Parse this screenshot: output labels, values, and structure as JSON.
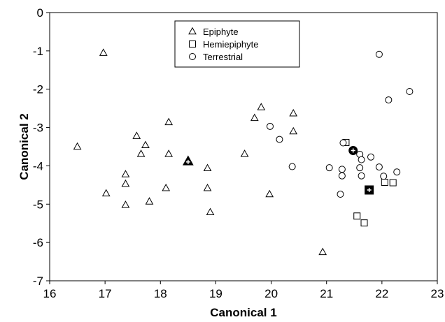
{
  "chart_data": {
    "type": "scatter",
    "xlabel": "Canonical 1",
    "ylabel": "Canonical 2",
    "xlim": [
      16,
      23
    ],
    "ylim": [
      -7,
      0
    ],
    "xticks": [
      "16",
      "17",
      "18",
      "19",
      "20",
      "21",
      "22",
      "23"
    ],
    "yticks": [
      "0",
      "-1",
      "-2",
      "-3",
      "-4",
      "-5",
      "-6",
      "-7"
    ],
    "legend_position": "top-center",
    "series": [
      {
        "name": "Epiphyte",
        "marker": "triangle",
        "points": [
          [
            16.5,
            -3.5
          ],
          [
            16.97,
            -1.05
          ],
          [
            17.02,
            -4.72
          ],
          [
            17.37,
            -4.22
          ],
          [
            17.37,
            -4.47
          ],
          [
            17.37,
            -5.02
          ],
          [
            17.57,
            -3.22
          ],
          [
            17.65,
            -3.69
          ],
          [
            17.73,
            -3.46
          ],
          [
            17.8,
            -4.93
          ],
          [
            18.1,
            -4.58
          ],
          [
            18.15,
            -2.86
          ],
          [
            18.15,
            -3.69
          ],
          [
            18.85,
            -4.06
          ],
          [
            18.85,
            -4.58
          ],
          [
            18.9,
            -5.21
          ],
          [
            19.52,
            -3.69
          ],
          [
            19.7,
            -2.75
          ],
          [
            19.82,
            -2.47
          ],
          [
            19.97,
            -4.74
          ],
          [
            20.4,
            -2.63
          ],
          [
            20.4,
            -3.1
          ],
          [
            20.93,
            -6.25
          ]
        ],
        "centroid": [
          18.5,
          -3.88
        ]
      },
      {
        "name": "Hemiepiphyte",
        "marker": "square",
        "points": [
          [
            21.35,
            -3.39
          ],
          [
            21.55,
            -5.31
          ],
          [
            21.68,
            -5.49
          ],
          [
            22.05,
            -4.43
          ],
          [
            22.2,
            -4.44
          ]
        ],
        "centroid": [
          21.77,
          -4.63
        ]
      },
      {
        "name": "Terrestrial",
        "marker": "circle",
        "points": [
          [
            21.95,
            -1.09
          ],
          [
            22.5,
            -2.06
          ],
          [
            22.12,
            -2.28
          ],
          [
            19.98,
            -2.97
          ],
          [
            20.15,
            -3.31
          ],
          [
            21.3,
            -3.4
          ],
          [
            20.38,
            -4.02
          ],
          [
            21.05,
            -4.05
          ],
          [
            21.28,
            -4.09
          ],
          [
            21.28,
            -4.26
          ],
          [
            21.25,
            -4.74
          ],
          [
            21.6,
            -3.7
          ],
          [
            21.63,
            -3.84
          ],
          [
            21.6,
            -4.05
          ],
          [
            21.63,
            -4.26
          ],
          [
            21.8,
            -3.77
          ],
          [
            21.95,
            -4.03
          ],
          [
            22.03,
            -4.27
          ],
          [
            22.27,
            -4.16
          ]
        ],
        "centroid": [
          21.48,
          -3.6
        ]
      }
    ]
  }
}
